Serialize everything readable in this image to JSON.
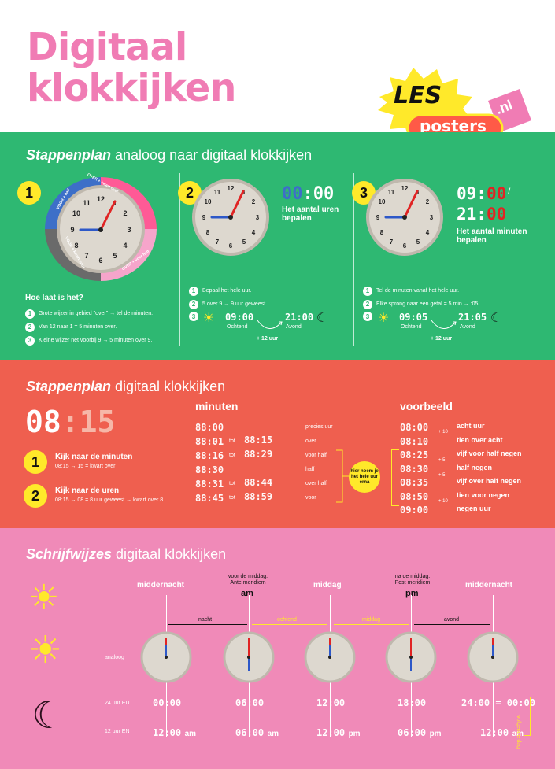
{
  "header": {
    "title_line1": "Digitaal",
    "title_line2": "klokkijken",
    "logo_les": "LES",
    "logo_posters": "posters",
    "logo_nl": ".nl"
  },
  "section1": {
    "title_bold": "Stappenplan",
    "title_rest": " analoog naar digitaal klokkijken",
    "step1": {
      "num": "1",
      "ring_text_1": "OVER + kwart over",
      "ring_text_2": "OVER + voor half",
      "ring_text_3": "VOOR + kwart voor",
      "ring_text_4": "VOOR + half",
      "question": "Hoe laat is het?",
      "items": [
        {
          "n": "1",
          "text": "Grote wijzer in gebied \"over\" → tel de minuten."
        },
        {
          "n": "2",
          "text": "Van 12 naar 1 = 5 minuten over."
        },
        {
          "n": "3",
          "text": "Kleine wijzer net voorbij 9 → 5 minuten over 9."
        }
      ]
    },
    "step2": {
      "num": "2",
      "display": "00:00",
      "caption": "Het aantal uren bepalen",
      "items": [
        {
          "n": "1",
          "text": "Bepaal het hele uur."
        },
        {
          "n": "2",
          "text": "5 over 9 → 9 uur geweest."
        }
      ],
      "morning_time": "09:00",
      "morning_label": "Ochtend",
      "evening_time": "21:00",
      "evening_label": "Avond",
      "plus": "+ 12 uur"
    },
    "step3": {
      "num": "3",
      "display1": "09:00",
      "display2": "21:00",
      "slash": "/",
      "caption": "Het aantal minuten bepalen",
      "items": [
        {
          "n": "1",
          "text": "Tel de minuten vanaf het hele uur."
        },
        {
          "n": "2",
          "text": "Elke sprong naar een getal = 5 min → :05"
        }
      ],
      "morning_time": "09:05",
      "morning_label": "Ochtend",
      "evening_time": "21:05",
      "evening_label": "Avond",
      "plus": "+ 12 uur"
    }
  },
  "section2": {
    "title_bold": "Stappenplan",
    "title_rest": " digitaal klokkijken",
    "big_display": "08:15",
    "steps": [
      {
        "n": "1",
        "title": "Kijk naar de minuten",
        "sub": "08:15 → 15 = kwart over"
      },
      {
        "n": "2",
        "title": "Kijk naar de uren",
        "sub": "08:15 → 08 = 8 uur geweest → kwart over 8"
      }
    ],
    "minutes_header": "minuten",
    "minute_rows": [
      {
        "a": "88:00",
        "tot": "",
        "b": "",
        "label": "precies uur"
      },
      {
        "a": "88:01",
        "tot": "tot",
        "b": "88:15",
        "label": "over"
      },
      {
        "a": "88:16",
        "tot": "tot",
        "b": "88:29",
        "label": "voor half"
      },
      {
        "a": "88:30",
        "tot": "",
        "b": "",
        "label": "half"
      },
      {
        "a": "88:31",
        "tot": "tot",
        "b": "88:44",
        "label": "over half"
      },
      {
        "a": "88:45",
        "tot": "tot",
        "b": "88:59",
        "label": "voor"
      }
    ],
    "note": "hier noem je het hele uur erna",
    "example_header": "voorbeeld",
    "examples": [
      {
        "time": "08:00",
        "label": "acht uur"
      },
      {
        "time": "08:10",
        "label": "tien over acht"
      },
      {
        "time": "08:25",
        "label": "vijf voor half negen"
      },
      {
        "time": "08:30",
        "label": "half negen"
      },
      {
        "time": "08:35",
        "label": "vijf over half negen"
      },
      {
        "time": "08:50",
        "label": "tien voor negen"
      },
      {
        "time": "09:00",
        "label": "negen uur"
      }
    ],
    "example_steps": [
      "+ 10",
      "+ 5",
      "+ 5",
      "+ 10"
    ]
  },
  "section3": {
    "title_bold": "Schrijfwijzes",
    "title_rest": " digitaal klokkijken",
    "top_labels": {
      "middernacht1": "middernacht",
      "am_sub": "voor de middag: Ante meridiem",
      "am": "am",
      "middag": "middag",
      "pm_sub": "na de middag: Post meridiem",
      "pm": "pm",
      "middernacht2": "middernacht"
    },
    "periods": [
      "nacht",
      "ochtend",
      "middag",
      "avond"
    ],
    "row_labels": {
      "analoog": "analoog",
      "eu": "24 uur EU",
      "en": "12 uur EN"
    },
    "eu_times": [
      "00:00",
      "06:00",
      "12:00",
      "18:00",
      "24:00 = 00:00"
    ],
    "en_times": [
      {
        "t": "12:00",
        "s": "am"
      },
      {
        "t": "06:00",
        "s": "am"
      },
      {
        "t": "12:00",
        "s": "pm"
      },
      {
        "t": "06:00",
        "s": "pm"
      },
      {
        "t": "12:00",
        "s": "am"
      }
    ],
    "next_day": "volgende dag"
  }
}
